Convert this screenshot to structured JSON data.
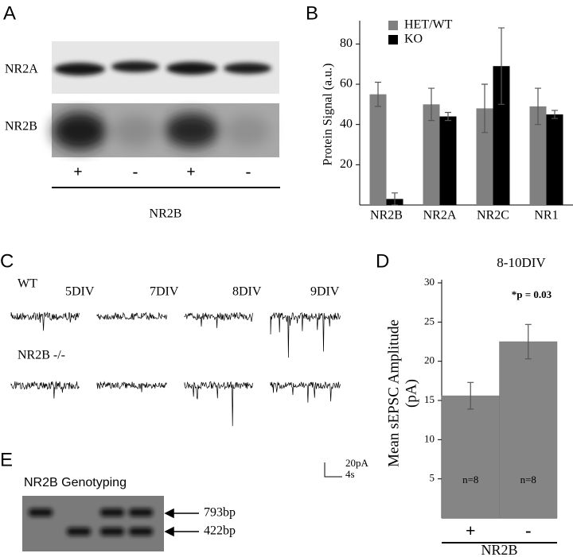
{
  "panel_labels": [
    "A",
    "B",
    "C",
    "D",
    "E"
  ],
  "blot": {
    "rows": [
      "NR2A",
      "NR2B"
    ],
    "lanes": [
      "+",
      "-",
      "+",
      "-"
    ],
    "xlabel": "NR2B"
  },
  "traces": {
    "groups": [
      "WT",
      "NR2B -/-"
    ],
    "timepoints": [
      "5DIV",
      "7DIV",
      "8DIV",
      "9DIV"
    ],
    "scale": [
      "20pA",
      "4s"
    ]
  },
  "genotyping": {
    "title": "NR2B Genotyping",
    "bands": [
      "793bp",
      "422bp"
    ]
  },
  "chart_data": [
    {
      "type": "bar",
      "ylabel": "Protein Signal (a.u.)",
      "categories": [
        "NR2B",
        "NR2A",
        "NR2C",
        "NR1"
      ],
      "series": [
        {
          "name": "HET/WT",
          "color": "#808080",
          "values": [
            55,
            50,
            48,
            49
          ],
          "errors": [
            6,
            8,
            12,
            9
          ]
        },
        {
          "name": "KO",
          "color": "#000000",
          "values": [
            3,
            44,
            69,
            45
          ],
          "errors": [
            3,
            2,
            19,
            2
          ]
        }
      ],
      "ylim": [
        0,
        90
      ],
      "yticks": [
        20,
        40,
        60,
        80
      ],
      "legend": "top-left"
    },
    {
      "type": "bar",
      "title": "8-10DIV",
      "annotation": "*p = 0.03",
      "ylabel": [
        "Mean sEPSC Amplitude",
        "(pA)"
      ],
      "xlabel": "NR2B",
      "categories": [
        "+",
        "-"
      ],
      "values": [
        15.6,
        22.5
      ],
      "errors": [
        1.7,
        2.2
      ],
      "bar_notes": [
        "n=8",
        "n=8"
      ],
      "color": "#858585",
      "ylim": [
        0,
        30
      ],
      "yticks": [
        5,
        10,
        15,
        20,
        25,
        30
      ]
    }
  ]
}
